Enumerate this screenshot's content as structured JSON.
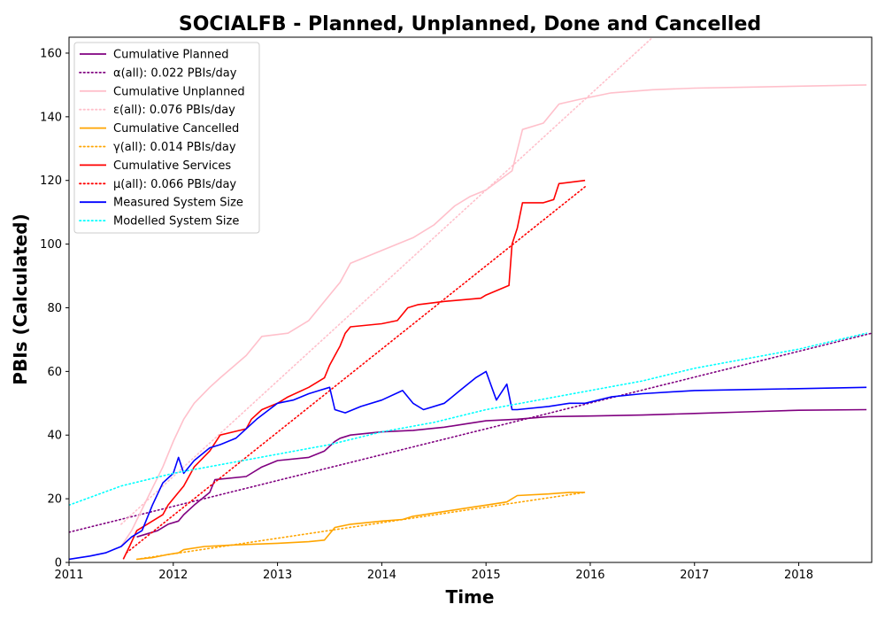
{
  "chart_data": {
    "type": "line",
    "title": "SOCIALFB - Planned, Unplanned, Done  and Cancelled",
    "xlabel": "Time",
    "ylabel": "PBIs (Calculated)",
    "xlim": [
      2011.0,
      2018.7
    ],
    "ylim": [
      0,
      165
    ],
    "x_ticks": [
      {
        "value": 2011,
        "label": "2011"
      },
      {
        "value": 2012,
        "label": "2012"
      },
      {
        "value": 2013,
        "label": "2013"
      },
      {
        "value": 2014,
        "label": "2014"
      },
      {
        "value": 2015,
        "label": "2015"
      },
      {
        "value": 2016,
        "label": "2016"
      },
      {
        "value": 2017,
        "label": "2017"
      },
      {
        "value": 2018,
        "label": "2018"
      }
    ],
    "y_ticks": [
      0,
      20,
      40,
      60,
      80,
      100,
      120,
      140,
      160
    ],
    "grid": false,
    "legend_position": "top-left",
    "series": [
      {
        "name": "Cumulative Planned",
        "style": "solid",
        "color": "#800080",
        "x": [
          2011.65,
          2011.75,
          2011.85,
          2011.95,
          2012.05,
          2012.1,
          2012.2,
          2012.35,
          2012.4,
          2012.7,
          2012.85,
          2013.0,
          2013.3,
          2013.45,
          2013.55,
          2013.6,
          2013.7,
          2014.0,
          2014.3,
          2014.6,
          2014.8,
          2015.0,
          2015.3,
          2015.6,
          2016.0,
          2016.5,
          2017.0,
          2017.5,
          2018.0,
          2018.65
        ],
        "y": [
          8,
          9,
          10,
          12,
          13,
          15,
          18,
          22,
          26,
          27,
          30,
          32,
          33,
          35,
          38,
          39,
          40,
          41,
          41.5,
          42.5,
          43.5,
          44.5,
          45,
          45.8,
          46,
          46.3,
          46.8,
          47.3,
          47.8,
          48
        ]
      },
      {
        "name": "α(all): 0.022 PBIs/day",
        "style": "dotted",
        "color": "#800080",
        "x": [
          2011.0,
          2018.7
        ],
        "y": [
          9.5,
          72
        ]
      },
      {
        "name": "Cumulative Unplanned",
        "style": "solid",
        "color": "#ffc0cb",
        "x": [
          2011.5,
          2011.6,
          2011.75,
          2011.9,
          2012.0,
          2012.1,
          2012.2,
          2012.35,
          2012.45,
          2012.7,
          2012.85,
          2013.1,
          2013.3,
          2013.45,
          2013.6,
          2013.7,
          2013.85,
          2014.0,
          2014.3,
          2014.5,
          2014.7,
          2014.85,
          2015.0,
          2015.25,
          2015.35,
          2015.55,
          2015.7,
          2015.9,
          2016.2,
          2016.6,
          2017.0,
          2017.5,
          2018.0,
          2018.65
        ],
        "y": [
          5,
          10,
          20,
          30,
          38,
          45,
          50,
          55,
          58,
          65,
          71,
          72,
          76,
          82,
          88,
          94,
          96,
          98,
          102,
          106,
          112,
          115,
          117,
          123,
          136,
          138,
          144,
          145.5,
          147.5,
          148.5,
          149,
          149.3,
          149.6,
          150
        ]
      },
      {
        "name": "ε(all): 0.076 PBIs/day",
        "style": "dotted",
        "color": "#ffc0cb",
        "x": [
          2011.5,
          2016.6
        ],
        "y": [
          12,
          165
        ]
      },
      {
        "name": "Cumulative Cancelled",
        "style": "solid",
        "color": "#ffa500",
        "x": [
          2011.65,
          2011.8,
          2011.95,
          2012.05,
          2012.1,
          2012.3,
          2012.6,
          2013.0,
          2013.3,
          2013.45,
          2013.55,
          2013.7,
          2014.0,
          2014.2,
          2014.3,
          2014.5,
          2014.7,
          2014.9,
          2015.0,
          2015.2,
          2015.3,
          2015.6,
          2015.8,
          2015.95
        ],
        "y": [
          1,
          1.5,
          2.5,
          3,
          4,
          5,
          5.5,
          6,
          6.5,
          7,
          11,
          12,
          13,
          13.5,
          14.5,
          15.5,
          16.5,
          17.5,
          18,
          19,
          21,
          21.5,
          22,
          22
        ]
      },
      {
        "name": "γ(all): 0.014 PBIs/day",
        "style": "dotted",
        "color": "#ffa500",
        "x": [
          2011.65,
          2015.95
        ],
        "y": [
          1,
          22
        ]
      },
      {
        "name": "Cumulative Services",
        "style": "solid",
        "color": "#ff0000",
        "x": [
          2011.52,
          2011.58,
          2011.65,
          2011.75,
          2011.9,
          2011.95,
          2012.05,
          2012.1,
          2012.2,
          2012.35,
          2012.45,
          2012.7,
          2012.75,
          2012.85,
          2013.0,
          2013.1,
          2013.3,
          2013.45,
          2013.5,
          2013.55,
          2013.6,
          2013.65,
          2013.7,
          2014.0,
          2014.15,
          2014.25,
          2014.35,
          2014.6,
          2014.95,
          2015.0,
          2015.22,
          2015.25,
          2015.3,
          2015.35,
          2015.55,
          2015.65,
          2015.7,
          2015.95
        ],
        "y": [
          1,
          5,
          10,
          12,
          15,
          18,
          22,
          24,
          30,
          35,
          40,
          42,
          45,
          48,
          50,
          52,
          55,
          58,
          62,
          65,
          68,
          72,
          74,
          75,
          76,
          80,
          81,
          82,
          83,
          84,
          87,
          100,
          105,
          113,
          113,
          114,
          119,
          120
        ]
      },
      {
        "name": "μ(all): 0.066 PBIs/day",
        "style": "dotted",
        "color": "#ff0000",
        "x": [
          2011.55,
          2015.95
        ],
        "y": [
          3,
          118
        ]
      },
      {
        "name": "Measured System Size",
        "style": "solid",
        "color": "#0000ff",
        "x": [
          2011.0,
          2011.2,
          2011.35,
          2011.5,
          2011.6,
          2011.7,
          2011.8,
          2011.9,
          2012.0,
          2012.05,
          2012.1,
          2012.2,
          2012.35,
          2012.45,
          2012.6,
          2012.8,
          2013.0,
          2013.15,
          2013.3,
          2013.4,
          2013.5,
          2013.55,
          2013.65,
          2013.8,
          2014.0,
          2014.2,
          2014.3,
          2014.4,
          2014.6,
          2014.75,
          2014.9,
          2015.0,
          2015.1,
          2015.2,
          2015.25,
          2015.3,
          2015.6,
          2015.8,
          2015.95,
          2016.2,
          2016.5,
          2017.0,
          2017.5,
          2018.0,
          2018.65
        ],
        "y": [
          1,
          2,
          3,
          5,
          8,
          10,
          18,
          25,
          28,
          33,
          28,
          32,
          36,
          37,
          39,
          45,
          50,
          51,
          53,
          54,
          55,
          48,
          47,
          49,
          51,
          54,
          50,
          48,
          50,
          54,
          58,
          60,
          51,
          56,
          48,
          48,
          49,
          50,
          50,
          52,
          53,
          54,
          54.3,
          54.6,
          55
        ]
      },
      {
        "name": "Modelled System Size",
        "style": "dotted",
        "color": "#00ffff",
        "x": [
          2011.0,
          2011.5,
          2012.0,
          2012.5,
          2013.0,
          2013.5,
          2014.0,
          2014.5,
          2015.0,
          2015.5,
          2016.0,
          2016.5,
          2017.0,
          2017.5,
          2018.0,
          2018.65
        ],
        "y": [
          18,
          24,
          28,
          31,
          34,
          37,
          41,
          44,
          48,
          51,
          54,
          57,
          61,
          64,
          67,
          72
        ]
      }
    ]
  }
}
